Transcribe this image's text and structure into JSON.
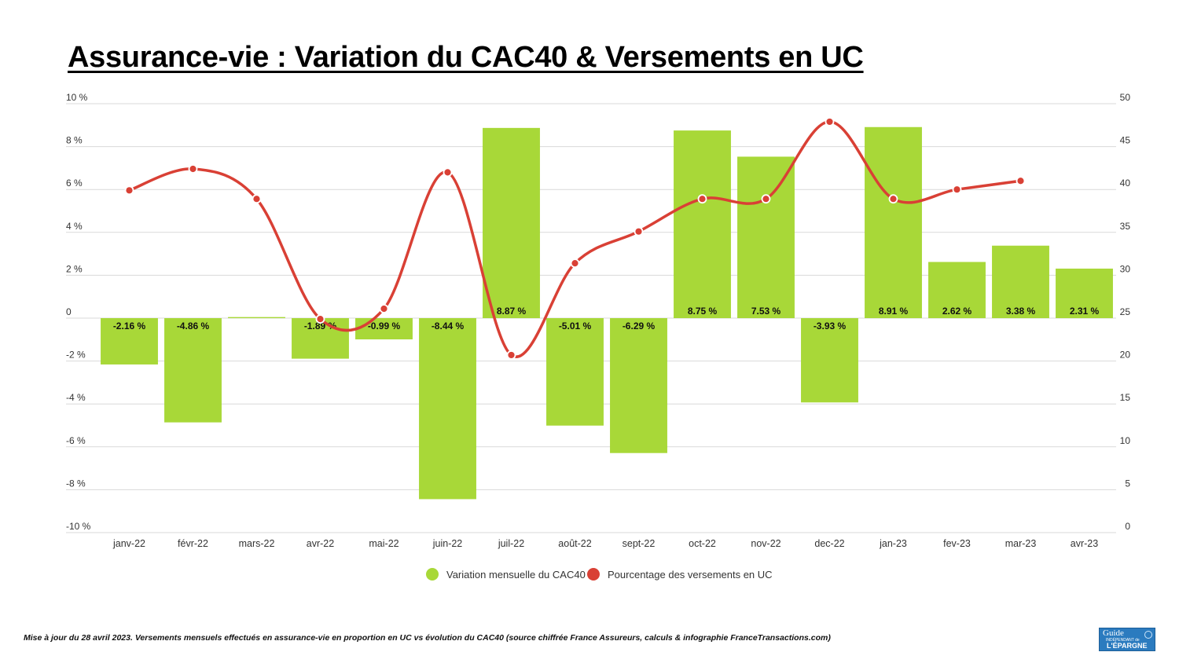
{
  "chart_data": {
    "type": "bar",
    "title": "Assurance-vie : Variation du CAC40 & Versements en UC",
    "categories": [
      "janv-22",
      "févr-22",
      "mars-22",
      "avr-22",
      "mai-22",
      "juin-22",
      "juil-22",
      "août-22",
      "sept-22",
      "oct-22",
      "nov-22",
      "dec-22",
      "jan-23",
      "fev-23",
      "mar-23",
      "avr-23"
    ],
    "series": [
      {
        "name": "Variation mensuelle du CAC40",
        "type": "bar",
        "axis": "left",
        "color": "#a8d838",
        "values": [
          -2.16,
          -4.86,
          0.05,
          -1.89,
          -0.99,
          -8.44,
          8.87,
          -5.01,
          -6.29,
          8.75,
          7.53,
          -3.93,
          8.91,
          2.62,
          3.38,
          2.31
        ],
        "data_labels": [
          "-2.16 %",
          "-4.86 %",
          "",
          "-1.89 %",
          "-0.99 %",
          "-8.44 %",
          "8.87 %",
          "-5.01 %",
          "-6.29 %",
          "8.75 %",
          "7.53 %",
          "-3.93 %",
          "8.91 %",
          "2.62 %",
          "3.38 %",
          "2.31 %"
        ]
      },
      {
        "name": "Pourcentage des versements en UC",
        "type": "line",
        "axis": "right",
        "color": "#d94035",
        "values": [
          39.9,
          42.4,
          38.9,
          24.9,
          26.1,
          42.0,
          20.7,
          31.4,
          35.1,
          38.9,
          38.9,
          47.9,
          38.9,
          40.0,
          41.0,
          null
        ]
      }
    ],
    "y_left": {
      "min": -10,
      "max": 10,
      "ticks": [
        10,
        8,
        6,
        4,
        2,
        0,
        -2,
        -4,
        -6,
        -8,
        -10
      ],
      "tick_labels": [
        "10 %",
        "8 %",
        "6 %",
        "4 %",
        "2 %",
        "0",
        "-2 %",
        "-4 %",
        "-6 %",
        "-8 %",
        "-10 %"
      ]
    },
    "y_right": {
      "min": 0,
      "max": 50,
      "ticks": [
        50,
        45,
        40,
        35,
        30,
        25,
        20,
        15,
        10,
        5,
        0
      ],
      "tick_labels": [
        "50",
        "45",
        "40",
        "35",
        "30",
        "25",
        "20",
        "15",
        "10",
        "5",
        "0"
      ]
    },
    "grid": true,
    "legend": "bottom-center"
  },
  "footnote": "Mise à jour du 28 avril 2023. Versements mensuels effectués en assurance-vie en proportion en UC vs évolution du CAC40 (source chiffrée France Assureurs, calculs & infographie FranceTransactions.com)",
  "logo": {
    "line1": "Guide",
    "line2": "INDÉPENDANT de",
    "line3": "L'ÉPARGNE"
  }
}
